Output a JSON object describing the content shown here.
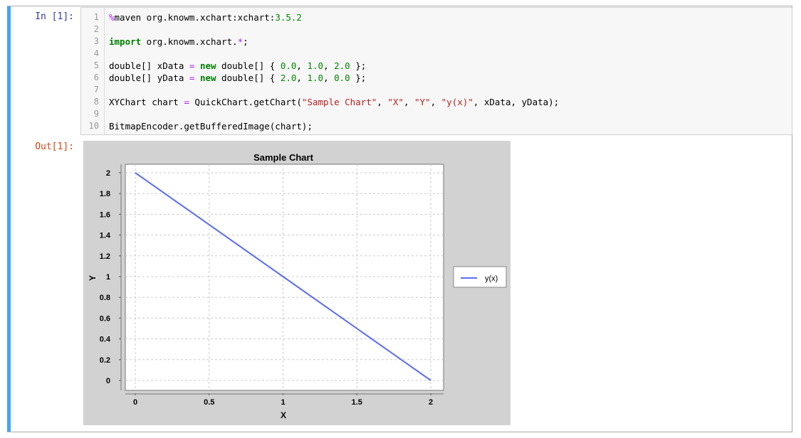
{
  "cell": {
    "in_prompt": "In [1]:",
    "out_prompt": "Out[1]:",
    "accent": "#42a5f5",
    "code_lines": [
      [
        [
          "%",
          "op"
        ],
        [
          "maven org.knowm.xchart:xchart:",
          ""
        ],
        [
          "3.5.2",
          "num"
        ]
      ],
      [],
      [
        [
          "import",
          "kw"
        ],
        [
          " org.knowm.xchart.",
          ""
        ],
        [
          "*",
          "op"
        ],
        [
          ";",
          ""
        ]
      ],
      [],
      [
        [
          "double[] xData ",
          ""
        ],
        [
          "=",
          "op"
        ],
        [
          " ",
          ""
        ],
        [
          "new",
          "kw"
        ],
        [
          " double[] { ",
          ""
        ],
        [
          "0.0",
          "num"
        ],
        [
          ", ",
          ""
        ],
        [
          "1.0",
          "num"
        ],
        [
          ", ",
          ""
        ],
        [
          "2.0",
          "num"
        ],
        [
          " };",
          ""
        ]
      ],
      [
        [
          "double[] yData ",
          ""
        ],
        [
          "=",
          "op"
        ],
        [
          " ",
          ""
        ],
        [
          "new",
          "kw"
        ],
        [
          " double[] { ",
          ""
        ],
        [
          "2.0",
          "num"
        ],
        [
          ", ",
          ""
        ],
        [
          "1.0",
          "num"
        ],
        [
          ", ",
          ""
        ],
        [
          "0.0",
          "num"
        ],
        [
          " };",
          ""
        ]
      ],
      [],
      [
        [
          "XYChart chart ",
          ""
        ],
        [
          "=",
          "op"
        ],
        [
          " QuickChart.getChart(",
          ""
        ],
        [
          "\"Sample Chart\"",
          "str"
        ],
        [
          ", ",
          ""
        ],
        [
          "\"X\"",
          "str"
        ],
        [
          ", ",
          ""
        ],
        [
          "\"Y\"",
          "str"
        ],
        [
          ", ",
          ""
        ],
        [
          "\"y(x)\"",
          "str"
        ],
        [
          ", xData, yData);",
          ""
        ]
      ],
      [],
      [
        [
          "BitmapEncoder.getBufferedImage(chart);",
          ""
        ]
      ]
    ]
  },
  "chart_data": {
    "type": "line",
    "title": "Sample Chart",
    "xlabel": "X",
    "ylabel": "Y",
    "x": [
      0,
      1,
      2
    ],
    "series": [
      {
        "name": "y(x)",
        "values": [
          2,
          1,
          0
        ],
        "color": "#5a6ef0"
      }
    ],
    "xlim": [
      0,
      2
    ],
    "ylim": [
      0,
      2
    ],
    "xticks": [
      "0",
      "0.5",
      "1",
      "1.5",
      "2"
    ],
    "yticks": [
      "0",
      "0.2",
      "0.4",
      "0.6",
      "0.8",
      "1",
      "1.2",
      "1.4",
      "1.6",
      "1.8",
      "2"
    ],
    "grid": true,
    "legend": "right"
  }
}
